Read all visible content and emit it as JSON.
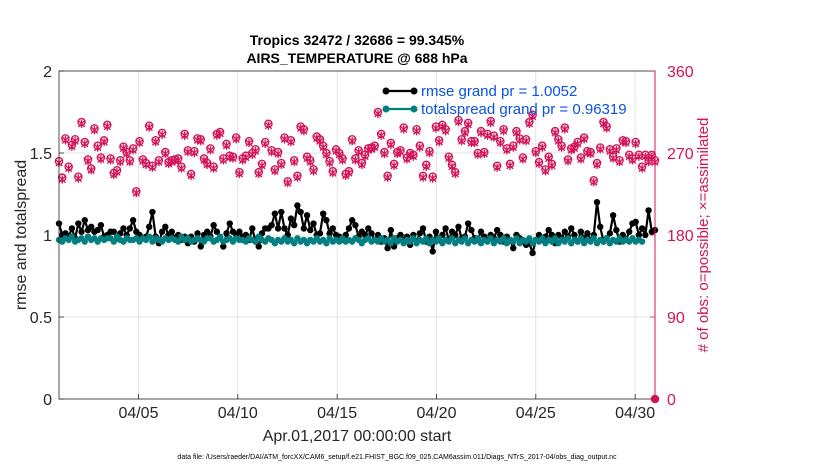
{
  "chart_data": {
    "type": "line",
    "title": "Tropics 32472 / 32686 = 99.345%",
    "subtitle": "AIRS_TEMPERATURE @ 688 hPa",
    "xlabel": "Apr.01,2017 00:00:00 start",
    "ylabel": "rmse and totalspread",
    "ylabel_right": "# of obs: o=possible; ×=assimilated",
    "footnote": "data file: /Users/raeder/DAI/ATM_forcXX/CAM6_setup/f.e21.FHIST_BGC.f09_025.CAM6assim.011/Diags_NTrS_2017-04/obs_diag_output.nc",
    "xlim": [
      1.0,
      31.0
    ],
    "ylim": [
      0,
      2
    ],
    "ylim_right": [
      0,
      360
    ],
    "x_ticks": [
      5,
      10,
      15,
      20,
      25,
      30
    ],
    "x_tick_labels": [
      "04/05",
      "04/10",
      "04/15",
      "04/20",
      "04/25",
      "04/30"
    ],
    "y_ticks": [
      0,
      0.5,
      1,
      1.5,
      2
    ],
    "y_tick_labels": [
      "0",
      "0.5",
      "1",
      "1.5",
      "2"
    ],
    "y_right_ticks": [
      0,
      90,
      180,
      270,
      360
    ],
    "y_right_tick_labels": [
      "0",
      "90",
      "180",
      "270",
      "360"
    ],
    "grid": true,
    "legend_position": "top-right",
    "colors": {
      "rmse": "#000000",
      "spread": "#008080",
      "obs": "#d4145a",
      "legend_text": "#0a52e0",
      "grid": "#dddddd"
    },
    "series": [
      {
        "name": "rmse",
        "legend": "rmse grand pr = 1.0052",
        "axis": "left",
        "values": [
          1.07,
          1.0,
          1.01,
          0.99,
          1.04,
          0.98,
          1.07,
          1.02,
          1.09,
          1.03,
          1.05,
          1.02,
          1.03,
          1.06,
          0.99,
          1.0,
          1.02,
          1.02,
          0.98,
          1.01,
          1.04,
          1.0,
          1.04,
          1.09,
          1.02,
          1.0,
          0.98,
          0.99,
          1.05,
          1.14,
          0.99,
          0.95,
          1.02,
          1.05,
          1.0,
          1.02,
          0.98,
          1.0,
          0.97,
          0.99,
          0.95,
          0.99,
          0.96,
          1.01,
          0.93,
          1.0,
          1.02,
          0.99,
          1.06,
          1.02,
          0.99,
          0.93,
          1.01,
          1.07,
          1.02,
          1.0,
          1.02,
          0.99,
          1.0,
          0.97,
          1.04,
          0.96,
          0.93,
          1.01,
          1.04,
          1.04,
          1.06,
          1.13,
          1.04,
          1.14,
          1.04,
          1.0,
          1.1,
          1.06,
          1.18,
          1.14,
          1.04,
          1.12,
          1.03,
          1.07,
          1.0,
          1.01,
          1.13,
          1.09,
          1.01,
          1.04,
          1.0,
          0.99,
          0.97,
          1.0,
          1.04,
          1.09,
          1.06,
          0.99,
          1.02,
          1.0,
          1.04,
          1.01,
          0.97,
          1.0,
          0.96,
          0.98,
          0.92,
          1.03,
          0.93,
          0.98,
          1.0,
          0.97,
          0.99,
          0.94,
          1.0,
          0.96,
          1.01,
          1.04,
          0.96,
          0.99,
          0.9,
          1.02,
          0.97,
          1.0,
          1.04,
          0.97,
          1.02,
          1.0,
          1.05,
          0.98,
          0.99,
          1.07,
          1.03,
          0.98,
          0.97,
          1.02,
          0.99,
          0.97,
          1.0,
          0.98,
          1.03,
          1.0,
          0.96,
          0.99,
          0.97,
          0.92,
          1.0,
          0.98,
          0.96,
          0.94,
          0.95,
          0.89,
          0.97,
          1.0,
          0.97,
          0.99,
          1.03,
          1.0,
          0.95,
          1.0,
          0.98,
          1.02,
          0.99,
          1.04,
          1.0,
          0.96,
          1.02,
          0.98,
          1.01,
          0.97,
          1.0,
          1.2,
          1.05,
          0.96,
          0.98,
          1.01,
          1.12,
          1.03,
          0.96,
          1.0,
          0.97,
          1.02,
          1.07,
          1.08,
          1.0,
          1.04,
          1.0,
          1.15,
          1.02,
          1.03
        ]
      },
      {
        "name": "totalspread",
        "legend": "totalspread grand pr = 0.96319",
        "axis": "left",
        "values": [
          0.97,
          0.96,
          0.98,
          0.97,
          0.99,
          0.96,
          0.97,
          0.98,
          0.96,
          0.99,
          0.97,
          0.98,
          0.96,
          0.98,
          0.97,
          0.98,
          0.98,
          0.96,
          0.99,
          0.97,
          0.96,
          0.98,
          0.97,
          0.97,
          0.98,
          0.96,
          0.98,
          0.97,
          0.99,
          0.96,
          0.98,
          0.97,
          0.96,
          0.98,
          0.97,
          0.98,
          0.97,
          0.96,
          0.99,
          0.97,
          0.98,
          0.96,
          0.97,
          0.98,
          0.97,
          0.96,
          0.98,
          0.98,
          0.96,
          0.97,
          0.99,
          0.96,
          0.97,
          0.98,
          0.96,
          0.98,
          0.97,
          0.97,
          0.96,
          0.98,
          0.97,
          0.96,
          0.99,
          0.97,
          0.96,
          0.98,
          0.97,
          0.95,
          0.97,
          0.96,
          0.98,
          0.96,
          0.97,
          0.95,
          0.98,
          0.96,
          0.97,
          0.95,
          0.97,
          0.96,
          0.98,
          0.96,
          0.97,
          0.95,
          0.98,
          0.96,
          0.97,
          0.96,
          0.98,
          0.96,
          0.97,
          0.96,
          0.98,
          0.97,
          0.95,
          0.97,
          0.98,
          0.96,
          0.97,
          0.96,
          0.98,
          0.96,
          0.97,
          0.95,
          0.98,
          0.96,
          0.97,
          0.95,
          0.97,
          0.96,
          0.98,
          0.95,
          0.97,
          0.96,
          0.98,
          0.95,
          0.97,
          0.96,
          0.98,
          0.95,
          0.97,
          0.96,
          0.98,
          0.95,
          0.97,
          0.96,
          0.98,
          0.95,
          0.97,
          0.96,
          0.98,
          0.95,
          0.97,
          0.96,
          0.98,
          0.95,
          0.97,
          0.96,
          0.98,
          0.95,
          0.97,
          0.96,
          0.98,
          0.95,
          0.97,
          0.96,
          0.98,
          0.95,
          0.97,
          0.96,
          0.98,
          0.95,
          0.97,
          0.96,
          0.98,
          0.95,
          0.97,
          0.96,
          0.98,
          0.95,
          0.97,
          0.96,
          0.98,
          0.95,
          0.97,
          0.96,
          0.98,
          0.95,
          0.97,
          0.96,
          0.98,
          0.95,
          0.97,
          0.96,
          0.98,
          0.96,
          0.97,
          0.96,
          0.98,
          0.96,
          0.97,
          0.96
        ]
      },
      {
        "name": "obs_possible",
        "axis": "right",
        "marker": "o",
        "values": [
          261,
          243,
          286,
          255,
          279,
          285,
          244,
          304,
          282,
          263,
          253,
          297,
          278,
          265,
          284,
          301,
          264,
          248,
          251,
          262,
          277,
          271,
          262,
          275,
          228,
          283,
          263,
          259,
          300,
          256,
          284,
          262,
          292,
          271,
          260,
          262,
          263,
          264,
          255,
          291,
          273,
          247,
          272,
          286,
          285,
          264,
          259,
          275,
          255,
          291,
          293,
          264,
          280,
          267,
          266,
          287,
          249,
          264,
          267,
          283,
          270,
          274,
          249,
          258,
          282,
          302,
          273,
          252,
          271,
          259,
          287,
          239,
          284,
          262,
          245,
          299,
          296,
          266,
          262,
          252,
          288,
          285,
          278,
          270,
          261,
          250,
          274,
          270,
          264,
          247,
          250,
          285,
          264,
          273,
          259,
          268,
          275,
          276,
          278,
          315,
          291,
          271,
          245,
          281,
          258,
          271,
          273,
          298,
          265,
          270,
          268,
          296,
          278,
          245,
          257,
          272,
          244,
          299,
          284,
          301,
          296,
          266,
          257,
          249,
          306,
          285,
          294,
          303,
          283,
          283,
          270,
          294,
          271,
          291,
          305,
          289,
          256,
          283,
          296,
          275,
          258,
          278,
          294,
          286,
          265,
          285,
          304,
          312,
          272,
          260,
          278,
          252,
          266,
          258,
          294,
          285,
          278,
          298,
          263,
          275,
          277,
          282,
          265,
          287,
          272,
          271,
          240,
          259,
          276,
          304,
          299,
          274,
          266,
          275,
          262,
          284,
          283,
          268,
          264,
          282,
          268,
          255,
          268,
          262,
          268,
          262
        ]
      },
      {
        "name": "obs_assimilated",
        "axis": "right",
        "marker": "x",
        "values": [
          259,
          241,
          284,
          253,
          277,
          283,
          242,
          302,
          280,
          261,
          251,
          295,
          276,
          263,
          282,
          299,
          262,
          246,
          249,
          260,
          275,
          269,
          260,
          273,
          226,
          281,
          261,
          257,
          298,
          254,
          282,
          260,
          290,
          269,
          258,
          260,
          261,
          262,
          253,
          289,
          271,
          245,
          270,
          284,
          283,
          262,
          257,
          273,
          253,
          289,
          291,
          262,
          278,
          265,
          264,
          285,
          247,
          262,
          265,
          281,
          268,
          272,
          247,
          256,
          280,
          300,
          271,
          250,
          269,
          257,
          285,
          237,
          282,
          260,
          243,
          297,
          294,
          264,
          260,
          250,
          286,
          283,
          276,
          268,
          259,
          248,
          272,
          268,
          262,
          245,
          248,
          283,
          262,
          271,
          257,
          266,
          273,
          274,
          276,
          313,
          289,
          269,
          243,
          279,
          256,
          269,
          271,
          296,
          263,
          268,
          266,
          294,
          276,
          243,
          255,
          270,
          242,
          297,
          282,
          299,
          294,
          264,
          255,
          247,
          304,
          283,
          292,
          301,
          281,
          281,
          268,
          292,
          269,
          289,
          303,
          287,
          254,
          281,
          294,
          273,
          256,
          276,
          292,
          284,
          263,
          283,
          302,
          310,
          270,
          258,
          276,
          250,
          264,
          256,
          292,
          283,
          276,
          296,
          261,
          273,
          275,
          280,
          263,
          285,
          270,
          269,
          238,
          257,
          274,
          302,
          297,
          272,
          264,
          273,
          260,
          282,
          281,
          266,
          262,
          280,
          266,
          253,
          266,
          260,
          266,
          260
        ]
      }
    ]
  }
}
